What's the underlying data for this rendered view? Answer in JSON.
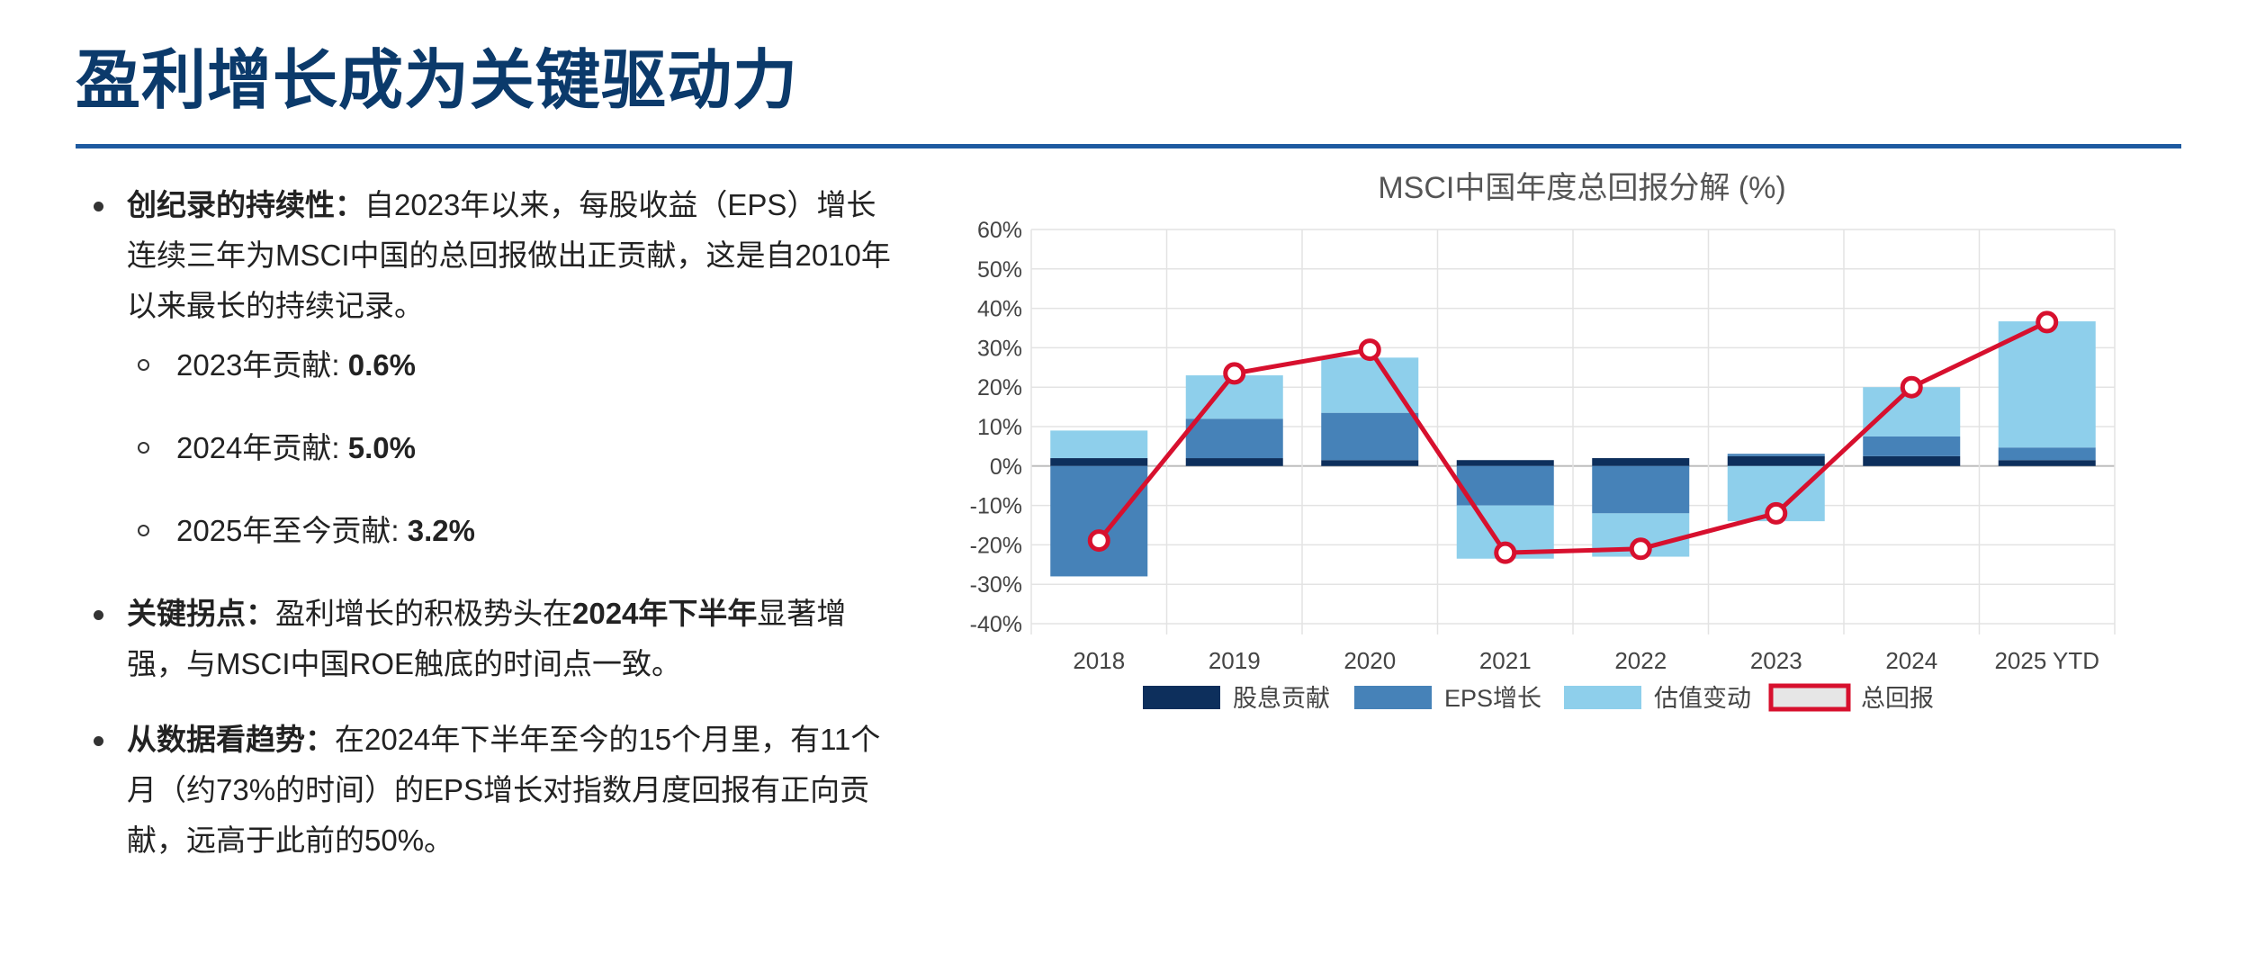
{
  "header": {
    "title": "盈利增长成为关键驱动力"
  },
  "bullets": {
    "b1": {
      "label": "创纪录的持续性：",
      "text": "自2023年以来，每股收益（EPS）增长连续三年为MSCI中国的总回报做出正贡献，这是自2010年以来最长的持续记录。",
      "subs": [
        {
          "label": "2023年贡献: ",
          "value": "0.6%"
        },
        {
          "label": "2024年贡献: ",
          "value": "5.0%"
        },
        {
          "label": "2025年至今贡献: ",
          "value": "3.2%"
        }
      ]
    },
    "b2": {
      "label": "关键拐点：",
      "pre": "盈利增长的积极势头在",
      "bold": "2024年下半年",
      "post": "显著增强，与MSCI中国ROE触底的时间点一致。"
    },
    "b3": {
      "label": "从数据看趋势：",
      "text": "在2024年下半年至今的15个月里，有11个月（约73%的时间）的EPS增长对指数月度回报有正向贡献，远高于此前的50%。"
    }
  },
  "colors": {
    "dividend": "#0d2f5c",
    "eps": "#4682b8",
    "valuation": "#8ecfeb",
    "total": "#d7102e"
  },
  "chart_data": {
    "type": "bar",
    "title": "MSCI中国年度总回报分解 (%)",
    "categories": [
      "2018",
      "2019",
      "2020",
      "2021",
      "2022",
      "2023",
      "2024",
      "2025 YTD"
    ],
    "ylim": [
      -40,
      60
    ],
    "yticks": [
      "60%",
      "50%",
      "40%",
      "30%",
      "20%",
      "10%",
      "0%",
      "-10%",
      "-20%",
      "-30%",
      "-40%"
    ],
    "ytick_values": [
      60,
      50,
      40,
      30,
      20,
      10,
      0,
      -10,
      -20,
      -30,
      -40
    ],
    "series": [
      {
        "name": "股息贡献",
        "values": [
          2,
          2,
          1.5,
          1.5,
          2,
          2.5,
          2.5,
          1.5
        ]
      },
      {
        "name": "EPS增长",
        "values": [
          -28,
          10,
          12,
          -10,
          -12,
          0.6,
          5,
          3.2
        ]
      },
      {
        "name": "估值变动",
        "values": [
          7,
          11,
          14,
          -13.5,
          -11,
          -14,
          12.5,
          32
        ]
      },
      {
        "name": "总回报",
        "type": "line",
        "values": [
          -18.9,
          23.5,
          29.5,
          -22,
          -21,
          -12,
          20,
          36.5
        ]
      }
    ],
    "legend_position": "bottom",
    "grid": true
  }
}
